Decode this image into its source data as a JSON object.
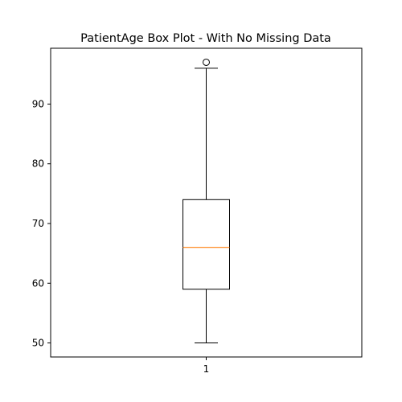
{
  "chart_data": {
    "type": "box",
    "title": "PatientAge Box Plot - With No Missing Data",
    "xlabel": "",
    "ylabel": "",
    "categories": [
      "1"
    ],
    "boxes": [
      {
        "category": "1",
        "whisker_low": 50,
        "q1": 59,
        "median": 66,
        "q3": 74,
        "whisker_high": 96,
        "outliers": [
          97
        ]
      }
    ],
    "ylim": [
      47.65,
      99.35
    ],
    "y_ticks": [
      50,
      60,
      70,
      80,
      90
    ],
    "grid": false,
    "legend": "none",
    "colors": {
      "box": "#000000",
      "median": "#ff7f0e",
      "outlier_marker": "#000000"
    }
  }
}
